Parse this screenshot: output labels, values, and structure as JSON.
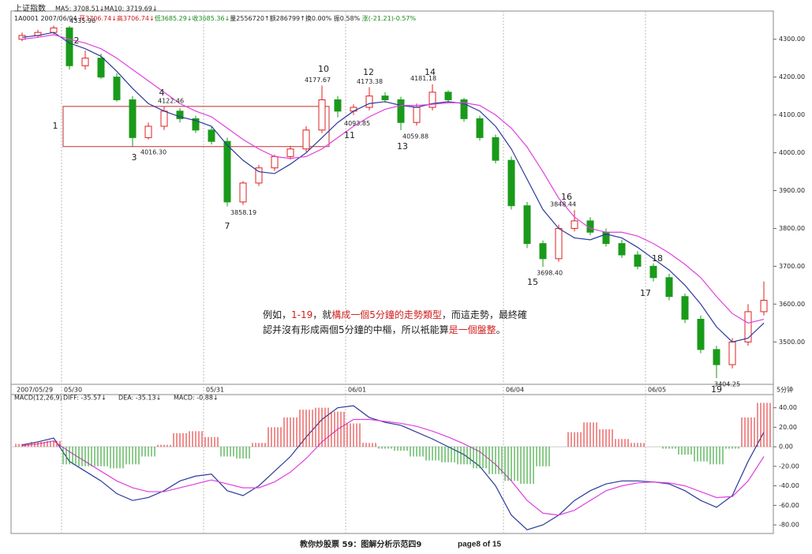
{
  "header": {
    "title": "上证指数",
    "line2": [
      {
        "text": "1A0001 2007/06/04 ",
        "color": "#222222"
      },
      {
        "text": "开3706.74↓高3706.74↓",
        "color": "#d02020"
      },
      {
        "text": "低3685.29↓收3685.36↓",
        "color": "#1a8a1a"
      },
      {
        "text": "量2556720↑额286799↑换0.00% 振0.58% ",
        "color": "#222222"
      },
      {
        "text": "涨(-21.21)-0.57%",
        "color": "#1a8a1a"
      }
    ]
  },
  "note": {
    "lines": [
      [
        {
          "text": "例如，",
          "color": "#222222"
        },
        {
          "text": "1-19",
          "color": "#d02020"
        },
        {
          "text": "，就",
          "color": "#222222"
        },
        {
          "text": "構成一個5分鐘的走勢類型",
          "color": "#d02020"
        },
        {
          "text": "，而這走勢，最終確",
          "color": "#222222"
        }
      ],
      [
        {
          "text": "認并沒有形成兩個5分鐘的中樞，所以衹能算",
          "color": "#222222"
        },
        {
          "text": "是一個盤整",
          "color": "#d02020"
        },
        {
          "text": "。",
          "color": "#222222"
        }
      ]
    ]
  },
  "footer": {
    "left": "教你炒股票 59：图解分析示范四9",
    "right": "page8 of 15"
  },
  "chart_data": [
    {
      "type": "candlestick",
      "categories": [
        "2007/05/29",
        null,
        null,
        "05/30",
        null,
        null,
        null,
        null,
        null,
        null,
        null,
        null,
        "05/31",
        null,
        null,
        null,
        null,
        null,
        null,
        null,
        null,
        "06/01",
        null,
        null,
        null,
        null,
        null,
        null,
        null,
        null,
        null,
        "06/04",
        null,
        null,
        null,
        null,
        null,
        null,
        null,
        null,
        "06/05",
        null,
        null,
        null,
        null,
        null,
        null,
        null
      ],
      "period": "5分钟",
      "open": [
        4300,
        4310,
        4318,
        4330,
        4230,
        4250,
        4200,
        4140,
        4040,
        4070,
        4110,
        4090,
        4060,
        4030,
        3870,
        3920,
        3960,
        3990,
        4010,
        4060,
        4140,
        4110,
        4120,
        4150,
        4140,
        4080,
        4120,
        4160,
        4140,
        4090,
        4040,
        3980,
        3860,
        3760,
        3720,
        3800,
        3820,
        3790,
        3760,
        3730,
        3700,
        3670,
        3620,
        3560,
        3480,
        3440,
        3500,
        3580
      ],
      "high": [
        4318,
        4325,
        4335.96,
        4335,
        4270,
        4262,
        4210,
        4150,
        4080,
        4122.46,
        4118,
        4098,
        4068,
        4040,
        3925,
        3968,
        3995,
        4018,
        4070,
        4177.67,
        4150,
        4128,
        4173.38,
        4160,
        4148,
        4130,
        4181.18,
        4165,
        4145,
        4098,
        4048,
        3990,
        3870,
        3768,
        3810,
        3848.44,
        3830,
        3800,
        3770,
        3740,
        3708,
        3680,
        3628,
        3570,
        3490,
        3510,
        3600,
        3660
      ],
      "low": [
        4295,
        4305,
        4312,
        4220,
        4220,
        4195,
        4135,
        4016.3,
        4035,
        4060,
        4080,
        4052,
        4022,
        3858.19,
        3862,
        3912,
        3952,
        3982,
        4002,
        4052,
        4093.85,
        4100,
        4112,
        4132,
        4059.88,
        4072,
        4112,
        4132,
        4082,
        4032,
        3972,
        3850,
        3748,
        3698.4,
        3712,
        3792,
        3782,
        3752,
        3722,
        3692,
        3660,
        3610,
        3550,
        3470,
        3404.25,
        3430,
        3490,
        3570
      ],
      "close": [
        4310,
        4318,
        4330,
        4230,
        4250,
        4200,
        4140,
        4040,
        4070,
        4110,
        4090,
        4060,
        4030,
        3870,
        3920,
        3960,
        3990,
        4010,
        4060,
        4140,
        4110,
        4120,
        4150,
        4140,
        4080,
        4120,
        4160,
        4140,
        4090,
        4040,
        3980,
        3860,
        3760,
        3720,
        3800,
        3820,
        3790,
        3760,
        3730,
        3700,
        3670,
        3620,
        3560,
        3480,
        3440,
        3500,
        3580,
        3610
      ],
      "up_color": "#e02020",
      "down_color": "#1a9a1a",
      "box_color": "#c03030",
      "series": [
        {
          "name": "MA5: 3708.51↓",
          "color": "#2a3a9a",
          "values": [
            4305,
            4310,
            4318,
            4290,
            4275,
            4255,
            4215,
            4170,
            4130,
            4110,
            4095,
            4085,
            4070,
            4020,
            3980,
            3950,
            3945,
            3970,
            4000,
            4040,
            4080,
            4110,
            4130,
            4135,
            4125,
            4120,
            4130,
            4135,
            4130,
            4110,
            4070,
            4010,
            3930,
            3850,
            3800,
            3775,
            3770,
            3785,
            3775,
            3750,
            3720,
            3690,
            3650,
            3600,
            3540,
            3500,
            3510,
            3550
          ]
        },
        {
          "name": "MA10: 3719.69↓",
          "color": "#e040e0",
          "values": [
            4300,
            4305,
            4312,
            4300,
            4290,
            4275,
            4250,
            4220,
            4190,
            4160,
            4130,
            4110,
            4095,
            4065,
            4035,
            4010,
            3990,
            3985,
            3990,
            4010,
            4040,
            4070,
            4095,
            4115,
            4125,
            4125,
            4128,
            4132,
            4132,
            4125,
            4100,
            4065,
            4015,
            3950,
            3880,
            3830,
            3800,
            3790,
            3790,
            3780,
            3760,
            3735,
            3705,
            3670,
            3620,
            3575,
            3550,
            3560
          ]
        }
      ],
      "ylim": [
        3388,
        4362
      ],
      "yticks": [
        {
          "value": 3500,
          "label": "3500.00"
        },
        {
          "value": 3600,
          "label": "3600.00"
        },
        {
          "value": 3700,
          "label": "3700.00"
        },
        {
          "value": 3800,
          "label": "3800.00"
        },
        {
          "value": 3900,
          "label": "3900.00"
        },
        {
          "value": 4000,
          "label": "4000.00"
        },
        {
          "value": 4100,
          "label": "4100.00"
        },
        {
          "value": 4200,
          "label": "4200.00"
        },
        {
          "value": 4300,
          "label": "4300.00"
        }
      ],
      "point_labels": [
        "1",
        "2",
        "3",
        "4",
        "7",
        "10",
        "11",
        "12",
        "13",
        "14",
        "15",
        "16",
        "17",
        "18",
        "19"
      ],
      "point_label_color": "#8a1a3a",
      "extreme_labels": [
        4335.96,
        4122.46,
        {
          "value": 4016.3,
          "label": "4016.30"
        },
        3858.19,
        4177.67,
        4093.85,
        4173.38,
        4059.88,
        4181.18,
        {
          "value": 3698.4,
          "label": "3698.40"
        },
        3848.44,
        3404.25
      ]
    },
    {
      "type": "macd",
      "title": "MACD(12,26,9)",
      "series": [
        {
          "name": "DIFF: -35.57↓",
          "color": "#2a3a9a",
          "values": [
            2,
            5,
            9,
            -15,
            -25,
            -35,
            -48,
            -55,
            -52,
            -45,
            -35,
            -30,
            -28,
            -45,
            -50,
            -40,
            -25,
            -10,
            10,
            28,
            40,
            42,
            30,
            25,
            22,
            15,
            8,
            0,
            -8,
            -20,
            -40,
            -70,
            -85,
            -80,
            -70,
            -55,
            -45,
            -38,
            -35,
            -35,
            -36,
            -38,
            -45,
            -55,
            -62,
            -50,
            -15,
            15
          ]
        },
        {
          "name": "DEA: -35.13↓",
          "color": "#e040e0",
          "values": [
            1,
            3,
            6,
            -5,
            -15,
            -25,
            -35,
            -42,
            -46,
            -46,
            -42,
            -38,
            -34,
            -38,
            -42,
            -42,
            -36,
            -26,
            -12,
            5,
            18,
            28,
            28,
            26,
            24,
            21,
            16,
            10,
            3,
            -5,
            -18,
            -35,
            -55,
            -68,
            -70,
            -65,
            -55,
            -45,
            -40,
            -37,
            -36,
            -37,
            -40,
            -46,
            -52,
            -51,
            -35,
            -10
          ]
        },
        {
          "name": "MACD: -0.88↓",
          "type": "histogram",
          "color": "#e02020",
          "neg_color": "#1a9a1a",
          "values": [
            3,
            5,
            6,
            -18,
            -20,
            -20,
            -22,
            -18,
            -10,
            2,
            14,
            16,
            10,
            -10,
            -12,
            4,
            20,
            30,
            38,
            40,
            36,
            24,
            4,
            -2,
            -4,
            -10,
            -14,
            -16,
            -18,
            -22,
            -28,
            -35,
            -38,
            -20,
            0,
            15,
            25,
            18,
            8,
            4,
            0,
            -2,
            -8,
            -15,
            -18,
            -2,
            30,
            45
          ]
        }
      ],
      "ylim": [
        -88,
        47
      ],
      "yticks": [
        {
          "value": -80,
          "label": "-80.00"
        },
        {
          "value": -60,
          "label": "-60.00"
        },
        {
          "value": -40,
          "label": "-40.00"
        },
        {
          "value": -20,
          "label": "-20.00"
        },
        {
          "value": 0,
          "label": "0.00"
        },
        {
          "value": 20,
          "label": "20.00"
        },
        {
          "value": 40,
          "label": "40.00"
        }
      ]
    }
  ]
}
